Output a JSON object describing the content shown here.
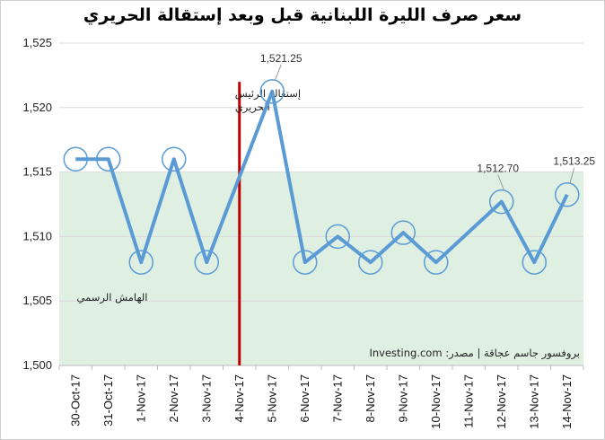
{
  "chart_data": {
    "type": "line",
    "title": "سعر صرف الليرة اللبنانية قبل وبعد إستقالة الحريري",
    "categories": [
      "30-Oct-17",
      "31-Oct-17",
      "1-Nov-17",
      "2-Nov-17",
      "3-Nov-17",
      "4-Nov-17",
      "5-Nov-17",
      "6-Nov-17",
      "7-Nov-17",
      "8-Nov-17",
      "9-Nov-17",
      "10-Nov-17",
      "11-Nov-17",
      "12-Nov-17",
      "13-Nov-17",
      "14-Nov-17"
    ],
    "series": [
      {
        "values": [
          1516,
          1516,
          1508,
          1516,
          1508,
          null,
          1521.25,
          1508,
          1510,
          1508,
          1510.3,
          1508,
          null,
          1512.7,
          1508,
          1513.25
        ],
        "markers": [
          true,
          true,
          true,
          true,
          true,
          false,
          true,
          true,
          true,
          true,
          true,
          true,
          false,
          true,
          true,
          true
        ],
        "color": "#5b9bd5"
      }
    ],
    "y_ticks": [
      "1,500",
      "1,505",
      "1,510",
      "1,515",
      "1,520",
      "1,525"
    ],
    "ylim": [
      1500,
      1525
    ],
    "data_labels": [
      {
        "index": 6,
        "text": "1,521.25"
      },
      {
        "index": 13,
        "text": "1,512.70"
      },
      {
        "index": 15,
        "text": "1,513.25"
      }
    ],
    "band": {
      "from": 1500,
      "to": 1515,
      "color": "#dff0e3",
      "label": "الهامش الرسمي"
    },
    "event": {
      "category_index": 5,
      "color": "#c00000",
      "label_lines": [
        "إستقالة الرئيس",
        "الحريري"
      ]
    },
    "source_note": "بروفسور جاسم عجاقة | مصدر: Investing.com",
    "grid": true
  }
}
